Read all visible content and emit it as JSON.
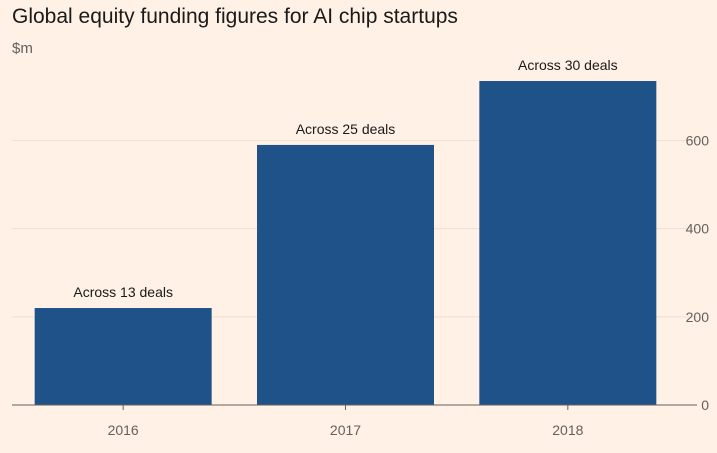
{
  "chart_data": {
    "type": "bar",
    "title": "Global equity funding figures for AI chip startups",
    "ylabel": "$m",
    "xlabel": "",
    "categories": [
      "2016",
      "2017",
      "2018"
    ],
    "values": [
      220,
      590,
      735
    ],
    "annotations": [
      "Across 13 deals",
      "Across 25 deals",
      "Across 30 deals"
    ],
    "ylim": [
      0,
      760
    ],
    "yticks": [
      0,
      200,
      400,
      600
    ],
    "grid": true,
    "y_axis_side": "right",
    "colors": {
      "bar": "#1f5289",
      "background": "#fff1e5",
      "grid": "#f1dfd2"
    }
  }
}
